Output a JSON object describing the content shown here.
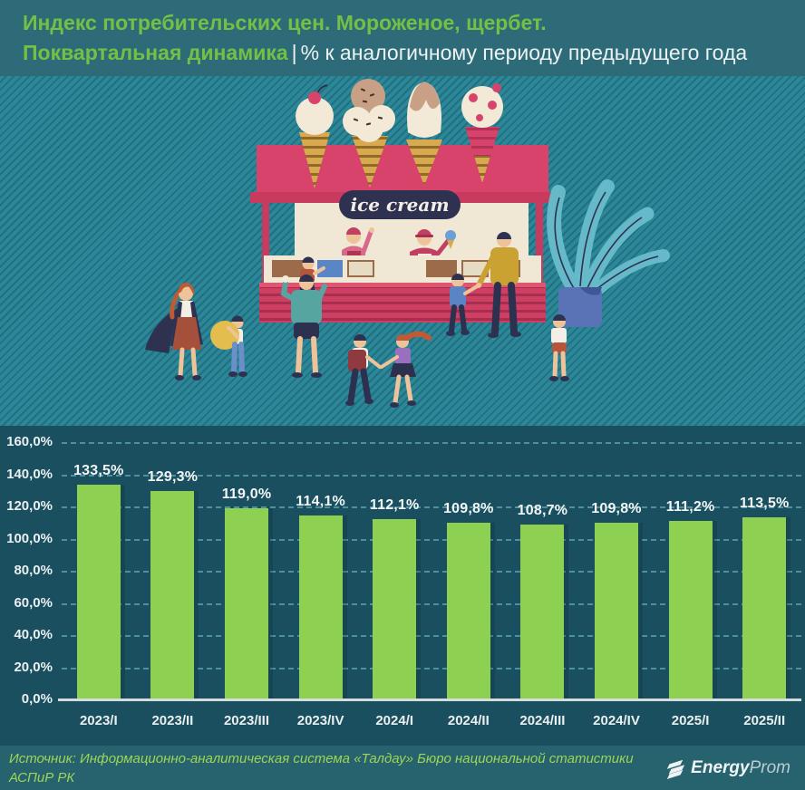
{
  "header": {
    "line1": "Индекс потребительских цен. Мороженое, щербет.",
    "line2_highlight": "Поквартальная динамика",
    "line2_sep": "|",
    "line2_rest": "% к аналогичному периоду предыдущего года"
  },
  "illustration": {
    "sign_text": "ice cream"
  },
  "chart_data": {
    "type": "bar",
    "title": "Индекс потребительских цен. Мороженое, щербет. Поквартальная динамика, % к аналогичному периоду предыдущего года",
    "categories": [
      "2023/I",
      "2023/II",
      "2023/III",
      "2023/IV",
      "2024/I",
      "2024/II",
      "2024/III",
      "2024/IV",
      "2025/I",
      "2025/II"
    ],
    "values": [
      133.5,
      129.3,
      119.0,
      114.1,
      112.1,
      109.8,
      108.7,
      109.8,
      111.2,
      113.5
    ],
    "bar_labels": [
      "133,5%",
      "129,3%",
      "119,0%",
      "114,1%",
      "112,1%",
      "109,8%",
      "108,7%",
      "109,8%",
      "111,2%",
      "113,5%"
    ],
    "y_ticks": [
      {
        "value": 0,
        "label": "0,0%"
      },
      {
        "value": 20,
        "label": "20,0%"
      },
      {
        "value": 40,
        "label": "40,0%"
      },
      {
        "value": 60,
        "label": "60,0%"
      },
      {
        "value": 80,
        "label": "80,0%"
      },
      {
        "value": 100,
        "label": "100,0%"
      },
      {
        "value": 120,
        "label": "120,0%"
      },
      {
        "value": 140,
        "label": "140,0%"
      },
      {
        "value": 160,
        "label": "160,0%"
      }
    ],
    "ylim": [
      0,
      160
    ],
    "grid": true,
    "legend_position": "none",
    "xlabel": "",
    "ylabel": ""
  },
  "footer": {
    "source_line1": "Источник: Информационно-аналитическая система «Талдау» Бюро национальной статистики",
    "source_line2": "АСПиР РК",
    "logo_energy": "Energy",
    "logo_prom": "Prom"
  },
  "colors": {
    "accent_green": "#74c044",
    "bar": "#8ed052",
    "background_teal": "#2c8799",
    "chart_bg": "#1a4f5f",
    "crimson": "#d8436b",
    "white_text": "#edf2f3"
  }
}
